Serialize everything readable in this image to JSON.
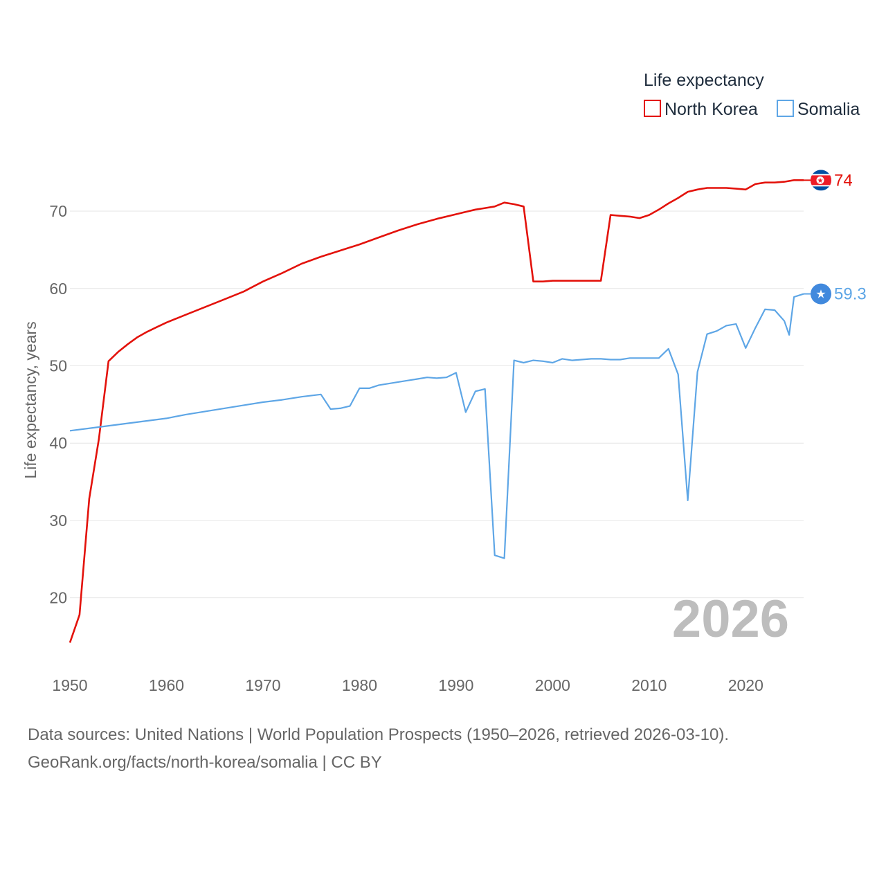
{
  "chart_data": {
    "type": "line",
    "year_label": "2026",
    "ylabel": "Life expectancy, years",
    "legend_title": "Life expectancy",
    "ylim": [
      12,
      76
    ],
    "xlim": [
      1950,
      2026
    ],
    "yticks": [
      20,
      30,
      40,
      50,
      60,
      70
    ],
    "xticks": [
      1950,
      1960,
      1970,
      1980,
      1990,
      2000,
      2010,
      2020
    ],
    "series": [
      {
        "name": "North Korea",
        "color": "#e3120b",
        "end_label": "74",
        "flag": "north-korea-flag-icon",
        "points": [
          [
            1950,
            14.2
          ],
          [
            1951,
            17.8
          ],
          [
            1952,
            32.8
          ],
          [
            1953,
            40.5
          ],
          [
            1954,
            50.6
          ],
          [
            1955,
            51.8
          ],
          [
            1956,
            52.8
          ],
          [
            1957,
            53.7
          ],
          [
            1958,
            54.4
          ],
          [
            1959,
            55.0
          ],
          [
            1960,
            55.6
          ],
          [
            1962,
            56.6
          ],
          [
            1964,
            57.6
          ],
          [
            1966,
            58.6
          ],
          [
            1968,
            59.6
          ],
          [
            1970,
            60.9
          ],
          [
            1972,
            62.0
          ],
          [
            1974,
            63.2
          ],
          [
            1976,
            64.1
          ],
          [
            1978,
            64.9
          ],
          [
            1980,
            65.7
          ],
          [
            1982,
            66.6
          ],
          [
            1984,
            67.5
          ],
          [
            1986,
            68.3
          ],
          [
            1988,
            69.0
          ],
          [
            1990,
            69.6
          ],
          [
            1991,
            69.9
          ],
          [
            1992,
            70.2
          ],
          [
            1993,
            70.4
          ],
          [
            1994,
            70.6
          ],
          [
            1995,
            71.1
          ],
          [
            1996,
            70.9
          ],
          [
            1997,
            70.6
          ],
          [
            1998,
            60.9
          ],
          [
            1999,
            60.9
          ],
          [
            2000,
            61.0
          ],
          [
            2002,
            61.0
          ],
          [
            2004,
            61.0
          ],
          [
            2005,
            61.0
          ],
          [
            2006,
            69.5
          ],
          [
            2008,
            69.3
          ],
          [
            2009,
            69.1
          ],
          [
            2010,
            69.5
          ],
          [
            2011,
            70.2
          ],
          [
            2012,
            71.0
          ],
          [
            2013,
            71.7
          ],
          [
            2014,
            72.5
          ],
          [
            2015,
            72.8
          ],
          [
            2016,
            73.0
          ],
          [
            2017,
            73.0
          ],
          [
            2018,
            73.0
          ],
          [
            2019,
            72.9
          ],
          [
            2020,
            72.8
          ],
          [
            2021,
            73.5
          ],
          [
            2022,
            73.7
          ],
          [
            2023,
            73.7
          ],
          [
            2024,
            73.8
          ],
          [
            2025,
            74.0
          ],
          [
            2026,
            74.0
          ]
        ]
      },
      {
        "name": "Somalia",
        "color": "#5ea6e6",
        "end_label": "59.3",
        "flag": "somalia-flag-icon",
        "points": [
          [
            1950,
            41.6
          ],
          [
            1955,
            42.4
          ],
          [
            1960,
            43.2
          ],
          [
            1962,
            43.7
          ],
          [
            1964,
            44.1
          ],
          [
            1966,
            44.5
          ],
          [
            1968,
            44.9
          ],
          [
            1970,
            45.3
          ],
          [
            1972,
            45.6
          ],
          [
            1974,
            46.0
          ],
          [
            1976,
            46.3
          ],
          [
            1977,
            44.4
          ],
          [
            1978,
            44.5
          ],
          [
            1979,
            44.8
          ],
          [
            1980,
            47.1
          ],
          [
            1981,
            47.1
          ],
          [
            1982,
            47.5
          ],
          [
            1983,
            47.7
          ],
          [
            1984,
            47.9
          ],
          [
            1985,
            48.1
          ],
          [
            1986,
            48.3
          ],
          [
            1987,
            48.5
          ],
          [
            1988,
            48.4
          ],
          [
            1989,
            48.5
          ],
          [
            1990,
            49.1
          ],
          [
            1991,
            44.0
          ],
          [
            1992,
            46.7
          ],
          [
            1993,
            47.0
          ],
          [
            1994,
            25.5
          ],
          [
            1995,
            25.1
          ],
          [
            1996,
            50.7
          ],
          [
            1997,
            50.4
          ],
          [
            1998,
            50.7
          ],
          [
            1999,
            50.6
          ],
          [
            2000,
            50.4
          ],
          [
            2001,
            50.9
          ],
          [
            2002,
            50.7
          ],
          [
            2003,
            50.8
          ],
          [
            2004,
            50.9
          ],
          [
            2005,
            50.9
          ],
          [
            2006,
            50.8
          ],
          [
            2007,
            50.8
          ],
          [
            2008,
            51.0
          ],
          [
            2009,
            51.0
          ],
          [
            2010,
            51.0
          ],
          [
            2011,
            51.0
          ],
          [
            2012,
            52.2
          ],
          [
            2013,
            48.9
          ],
          [
            2014,
            32.6
          ],
          [
            2015,
            49.2
          ],
          [
            2016,
            54.1
          ],
          [
            2017,
            54.5
          ],
          [
            2018,
            55.2
          ],
          [
            2019,
            55.4
          ],
          [
            2020,
            52.3
          ],
          [
            2021,
            54.9
          ],
          [
            2022,
            57.3
          ],
          [
            2023,
            57.2
          ],
          [
            2024,
            55.8
          ],
          [
            2024.5,
            54.0
          ],
          [
            2025,
            58.9
          ],
          [
            2025.5,
            59.1
          ],
          [
            2026,
            59.3
          ]
        ]
      }
    ]
  },
  "source": {
    "line1": "Data sources: United Nations | World Population Prospects (1950–2026, retrieved 2026-03-10).",
    "line2": "GeoRank.org/facts/north-korea/somalia | CC BY"
  }
}
